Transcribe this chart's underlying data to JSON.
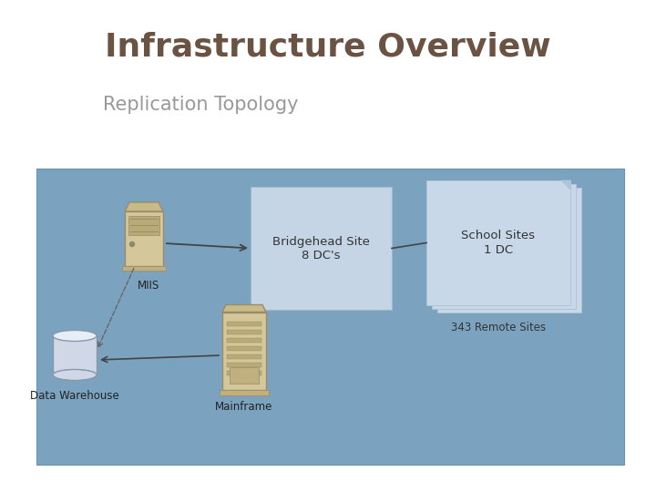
{
  "title": "Infrastructure Overview",
  "subtitle": "Replication Topology",
  "title_color": "#6B5344",
  "subtitle_color": "#999999",
  "bg_color": "#FFFFFF",
  "diagram_bg": "#7BA3BF",
  "bridgehead_box_color": "#C5D5E5",
  "school_box_color": "#C8D8E8",
  "school_box_edge": "#B0C4D4",
  "bridgehead_label": "Bridgehead Site\n8 DC's",
  "school_label": "School Sites\n1 DC",
  "remote_sites_label": "343 Remote Sites",
  "miis_label": "MIIS",
  "data_warehouse_label": "Data Warehouse",
  "mainframe_label": "Mainframe",
  "server_color": "#D4C89A",
  "server_edge": "#9B8B6A",
  "cylinder_color": "#D0D8E8",
  "cylinder_top": "#E8EEF5",
  "arrow_color": "#444444",
  "dashed_arrow_color": "#666666"
}
